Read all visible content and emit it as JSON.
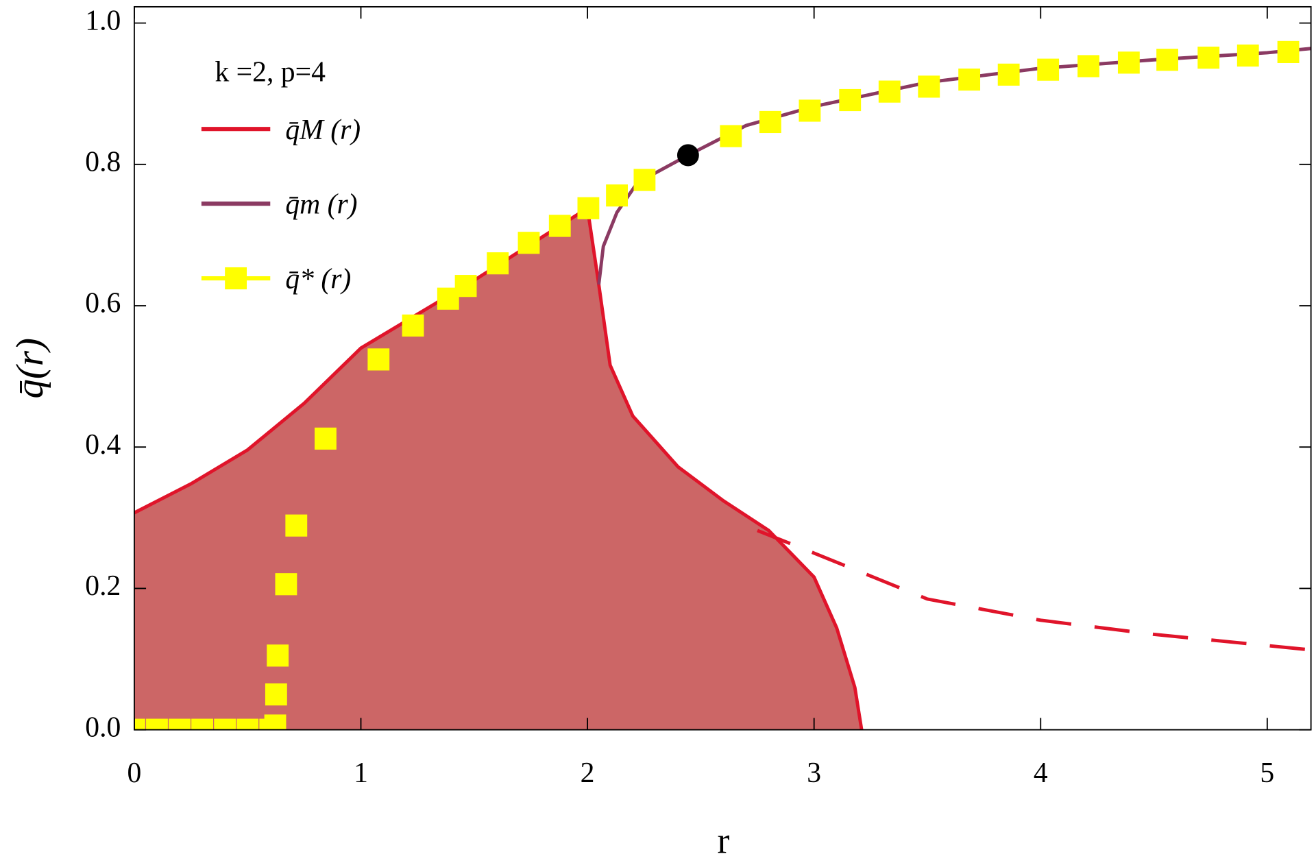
{
  "chart_data": {
    "type": "line",
    "annotation": "k =2, p=4",
    "x_label": "r",
    "y_label": "q̄(r)",
    "xlim": [
      0,
      5.193
    ],
    "ylim": [
      0,
      1.023
    ],
    "xticks": [
      0,
      1,
      2,
      3,
      4,
      5
    ],
    "yticks": [
      {
        "value": 0,
        "label": "0.0"
      },
      0.2,
      0.4,
      0.6,
      0.8,
      {
        "value": 1,
        "label": "1.0"
      }
    ],
    "fill_color": "#cc6666",
    "series": [
      {
        "name": "q̄M (r)",
        "color": "#e0142a",
        "style": "solid",
        "fill": true,
        "x": [
          0,
          0.25,
          0.5,
          0.75,
          1,
          1.25,
          1.5,
          1.75,
          2,
          2.05,
          2.1,
          2.2,
          2.4,
          2.6,
          2.8,
          3.0,
          3.1,
          3.18,
          3.21
        ],
        "values": [
          0.307,
          0.348,
          0.396,
          0.462,
          0.54,
          0.588,
          0.636,
          0.687,
          0.738,
          0.63,
          0.516,
          0.444,
          0.372,
          0.324,
          0.282,
          0.216,
          0.144,
          0.06,
          0
        ]
      },
      {
        "name": "q̄m (r)",
        "color": "#8b3a62",
        "style": "solid",
        "x": [
          2.05,
          2.07,
          2.13,
          2.22,
          2.444,
          2.7,
          3.0,
          3.5,
          4.0,
          4.5,
          5.0,
          5.193
        ],
        "values": [
          0.63,
          0.684,
          0.732,
          0.774,
          0.813,
          0.855,
          0.882,
          0.916,
          0.936,
          0.948,
          0.958,
          0.964
        ]
      },
      {
        "name": "q̄* (r)",
        "color": "#ffff00",
        "style": "markers",
        "x": [
          0,
          0.1,
          0.2,
          0.3,
          0.4,
          0.5,
          0.6,
          0.622,
          0.626,
          0.633,
          0.67,
          0.715,
          0.844,
          1.078,
          1.23,
          1.385,
          1.463,
          1.604,
          1.741,
          1.878,
          2.004,
          2.13,
          2.252,
          2.633,
          2.807,
          2.981,
          3.159,
          3.333,
          3.507,
          3.685,
          3.859,
          4.033,
          4.211,
          4.389,
          4.559,
          4.741,
          4.915,
          5.093
        ],
        "values": [
          0,
          0,
          0,
          0,
          0,
          0,
          0,
          0.006,
          0.05,
          0.105,
          0.206,
          0.289,
          0.412,
          0.524,
          0.572,
          0.61,
          0.628,
          0.66,
          0.689,
          0.713,
          0.738,
          0.756,
          0.778,
          0.84,
          0.86,
          0.876,
          0.891,
          0.903,
          0.91,
          0.92,
          0.927,
          0.934,
          0.939,
          0.944,
          0.948,
          0.951,
          0.954,
          0.959
        ]
      },
      {
        "color": "#e0142a",
        "style": "dashed",
        "x": [
          2.75,
          3.0,
          3.5,
          4.0,
          4.5,
          5.193
        ],
        "values": [
          0.282,
          0.25,
          0.185,
          0.155,
          0.135,
          0.113
        ]
      }
    ],
    "points": [
      {
        "x": 2.444,
        "y": 0.813,
        "color": "#000000"
      }
    ]
  }
}
